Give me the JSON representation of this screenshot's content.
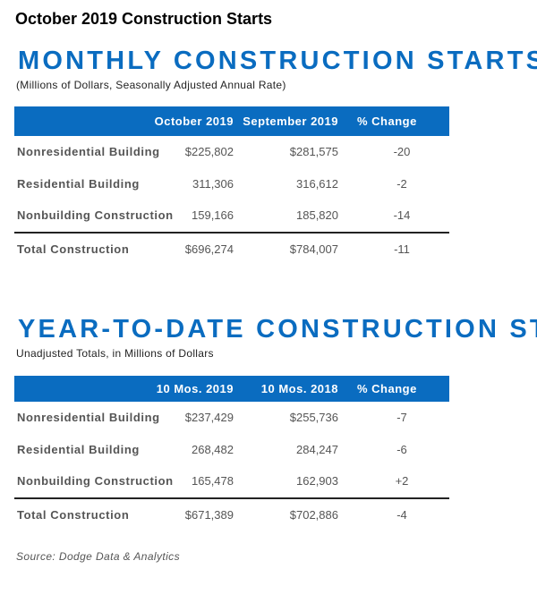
{
  "title": "October 2019 Construction Starts",
  "monthly": {
    "heading": "MONTHLY CONSTRUCTION STARTS",
    "subtitle": "(Millions of Dollars, Seasonally Adjusted Annual Rate)",
    "columns": [
      "",
      "October 2019",
      "September 2019",
      "% Change"
    ],
    "rows": [
      [
        "Nonresidential Building",
        "$225,802",
        "$281,575",
        "-20"
      ],
      [
        "Residential Building",
        "311,306",
        "316,612",
        "-2"
      ],
      [
        "Nonbuilding Construction",
        "159,166",
        "185,820",
        "-14"
      ],
      [
        "Total Construction",
        "$696,274",
        "$784,007",
        "-11"
      ]
    ]
  },
  "ytd": {
    "heading": "YEAR-TO-DATE CONSTRUCTION STARTS",
    "subtitle": "Unadjusted Totals, in Millions of Dollars",
    "columns": [
      "",
      "10 Mos. 2019",
      "10 Mos. 2018",
      "% Change"
    ],
    "rows": [
      [
        "Nonresidential Building",
        "$237,429",
        "$255,736",
        "-7"
      ],
      [
        "Residential Building",
        "268,482",
        "284,247",
        "-6"
      ],
      [
        "Nonbuilding Construction",
        "165,478",
        "162,903",
        "+2"
      ],
      [
        "Total Construction",
        "$671,389",
        "$702,886",
        "-4"
      ]
    ]
  },
  "source": "Source: Dodge Data & Analytics",
  "colors": {
    "accent": "#0a6cc0"
  }
}
